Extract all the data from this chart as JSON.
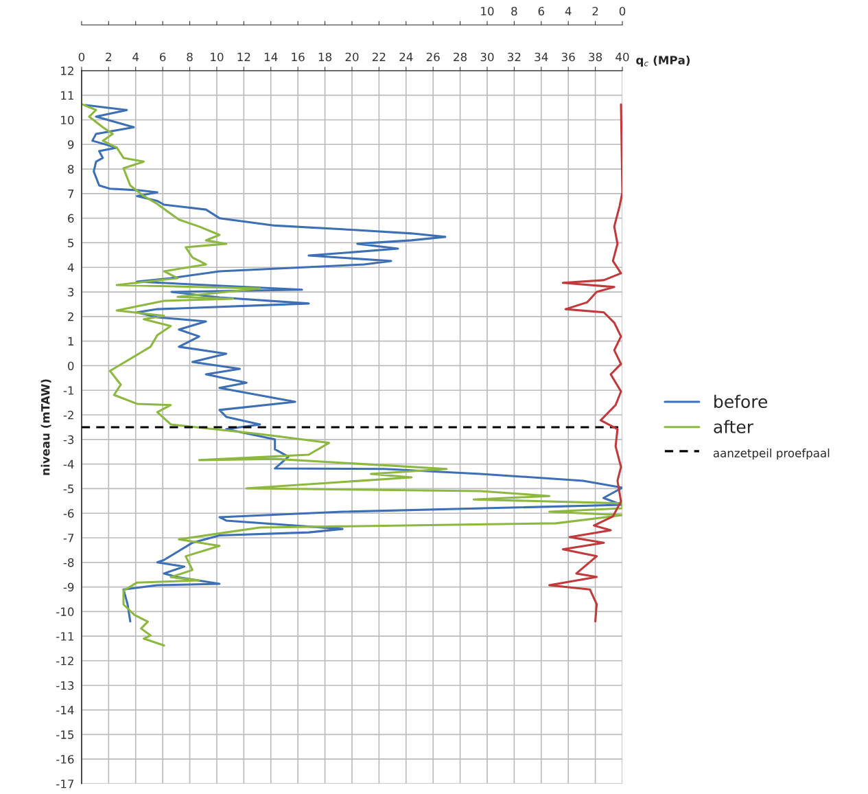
{
  "chart_data": {
    "type": "line",
    "xlabel": "q$_{c}$ (MPa)",
    "ylabel": "niveau (mTAW)",
    "xlim": [
      0,
      40
    ],
    "xticks": [
      0,
      2,
      4,
      6,
      8,
      10,
      12,
      14,
      16,
      18,
      20,
      22,
      24,
      26,
      28,
      30,
      32,
      34,
      36,
      38,
      40
    ],
    "x2lim": [
      40,
      0
    ],
    "x2ticks": [
      0,
      2,
      4,
      6,
      8,
      10,
      {
        "value": 12,
        "label": null
      },
      {
        "value": 14,
        "label": null
      },
      {
        "value": 16,
        "label": null
      },
      {
        "value": 18,
        "label": null
      },
      {
        "value": 20,
        "label": null
      },
      {
        "value": 22,
        "label": null
      },
      {
        "value": 24,
        "label": null
      },
      {
        "value": 26,
        "label": null
      },
      {
        "value": 28,
        "label": null
      },
      {
        "value": 30,
        "label": null
      },
      {
        "value": 32,
        "label": null
      },
      {
        "value": 34,
        "label": null
      },
      {
        "value": 36,
        "label": null
      },
      {
        "value": 38,
        "label": null
      },
      {
        "value": 40,
        "label": null
      }
    ],
    "ylim": [
      -17,
      12
    ],
    "yticks": [
      -17,
      -16,
      -15,
      -14,
      -13,
      -12,
      -11,
      -10,
      -9,
      -8,
      -7,
      -6,
      -5,
      -4,
      -3,
      -2,
      -1,
      0,
      1,
      2,
      3,
      4,
      5,
      6,
      7,
      8,
      9,
      10,
      11,
      12
    ],
    "grid": true,
    "legend": "right",
    "line_style": "solid",
    "marker": "none",
    "ref_lines": [
      {
        "axis": "y",
        "value": -2.5,
        "label": "aanzetpeil proefpaal",
        "color": "#000000",
        "line_style": "dashed"
      }
    ],
    "series": [
      {
        "name": "before",
        "color": "#3d6fb5",
        "x": [
          0.3,
          3.35,
          1.07,
          3.86,
          1.07,
          0.8,
          2.6,
          1.3,
          1.57,
          1.07,
          0.9,
          1.3,
          2.1,
          4.1,
          5.6,
          4.1,
          5.6,
          6.1,
          9.2,
          10.2,
          14.3,
          19.3,
          24.4,
          26.9,
          24.4,
          20.4,
          23.4,
          16.8,
          22.9,
          20.9,
          10.2,
          6.6,
          4.1,
          16.3,
          6.65,
          10.2,
          16.8,
          5.6,
          4.1,
          5.6,
          9.2,
          7.2,
          8.7,
          7.2,
          10.7,
          8.2,
          11.7,
          9.2,
          12.2,
          10.2,
          15.8,
          10.2,
          10.7,
          13.2,
          10.7,
          14.3,
          14.3,
          15.3,
          14.3,
          22.4,
          29.5,
          37.1,
          40,
          38.6,
          40,
          19.3,
          10.2,
          10.7,
          19.3,
          16.8,
          10.2,
          8.2,
          6.1,
          5.6,
          7.6,
          6.1,
          7.1,
          10.2,
          5.6,
          3.1,
          3.4,
          3.6
        ],
        "values": [
          10.6,
          10.4,
          10.13,
          9.7,
          9.43,
          9.15,
          8.87,
          8.73,
          8.45,
          8.3,
          7.9,
          7.33,
          7.2,
          7.14,
          7.05,
          6.9,
          6.7,
          6.55,
          6.35,
          6.0,
          5.7,
          5.55,
          5.38,
          5.24,
          5.1,
          4.96,
          4.76,
          4.48,
          4.26,
          4.12,
          3.84,
          3.56,
          3.42,
          3.09,
          3.0,
          2.78,
          2.53,
          2.3,
          2.17,
          1.97,
          1.8,
          1.47,
          1.19,
          0.77,
          0.49,
          0.15,
          -0.13,
          -0.35,
          -0.69,
          -0.9,
          -1.47,
          -1.8,
          -2.08,
          -2.39,
          -2.58,
          -3.0,
          -3.4,
          -3.7,
          -4.18,
          -4.2,
          -4.4,
          -4.68,
          -4.96,
          -5.38,
          -5.66,
          -5.94,
          -6.16,
          -6.3,
          -6.64,
          -6.78,
          -6.9,
          -7.2,
          -7.9,
          -8.0,
          -8.17,
          -8.45,
          -8.6,
          -8.87,
          -8.93,
          -9.1,
          -9.7,
          -10.4
        ]
      },
      {
        "name": "after",
        "color": "#8db840",
        "x": [
          0.05,
          1.07,
          0.56,
          1.57,
          2.3,
          1.57,
          2.6,
          3.1,
          4.6,
          3.1,
          3.6,
          4.6,
          5.6,
          7.2,
          8.7,
          10.2,
          9.2,
          10.7,
          7.7,
          8.2,
          9.2,
          6.1,
          7.1,
          2.6,
          13.2,
          10.7,
          7.1,
          11.2,
          6.1,
          2.6,
          6.1,
          4.6,
          6.6,
          5.6,
          5.1,
          2.1,
          2.9,
          2.4,
          4.1,
          6.6,
          5.6,
          6.6,
          13.2,
          18.3,
          16.8,
          8.7,
          14.3,
          27.0,
          21.4,
          24.4,
          12.2,
          29.5,
          34.6,
          29.0,
          40,
          40,
          34.6,
          40,
          35.1,
          13.2,
          10.7,
          7.2,
          10.2,
          7.7,
          8.2,
          6.6,
          8.7,
          4.1,
          3.1,
          3.1,
          3.9,
          4.9,
          4.4,
          5.1,
          4.6,
          6.1
        ],
        "values": [
          10.63,
          10.4,
          10.13,
          9.7,
          9.43,
          9.15,
          8.87,
          8.45,
          8.3,
          8.03,
          7.33,
          6.9,
          6.58,
          5.94,
          5.66,
          5.32,
          5.1,
          4.96,
          4.82,
          4.4,
          4.12,
          3.84,
          3.56,
          3.28,
          3.14,
          3.0,
          2.8,
          2.72,
          2.64,
          2.25,
          2.03,
          1.89,
          1.61,
          1.24,
          0.77,
          -0.21,
          -0.77,
          -1.19,
          -1.55,
          -1.6,
          -1.89,
          -2.39,
          -2.78,
          -3.14,
          -3.62,
          -3.84,
          -3.79,
          -4.2,
          -4.4,
          -4.54,
          -4.99,
          -5.1,
          -5.3,
          -5.44,
          -5.6,
          -5.8,
          -5.94,
          -6.08,
          -6.41,
          -6.58,
          -6.78,
          -7.06,
          -7.33,
          -7.75,
          -8.31,
          -8.6,
          -8.73,
          -8.82,
          -9.15,
          -9.71,
          -10.13,
          -10.41,
          -10.69,
          -10.97,
          -11.1,
          -11.38
        ]
      },
      {
        "color": "#c0393b",
        "axis": "x2",
        "x": [
          0.1,
          0,
          0.2,
          0.6,
          0.36,
          0.7,
          0.1,
          1.37,
          4.4,
          0.6,
          1.9,
          2.6,
          4.2,
          1.37,
          0.6,
          0.1,
          0.6,
          0.1,
          0.86,
          0.1,
          0.5,
          1.6,
          0.36,
          0.5,
          0.1,
          0.36,
          0.1,
          0.7,
          2.1,
          0.86,
          3.9,
          1.37,
          4.4,
          1.9,
          3.4,
          1.9,
          5.4,
          2.4,
          1.9,
          2.0
        ],
        "values": [
          10.63,
          7.05,
          6.5,
          5.66,
          4.96,
          4.26,
          3.76,
          3.48,
          3.37,
          3.2,
          3.0,
          2.58,
          2.3,
          2.17,
          1.75,
          1.19,
          0.63,
          0.07,
          -0.35,
          -1.05,
          -1.6,
          -2.22,
          -2.58,
          -3.28,
          -4.12,
          -4.68,
          -5.52,
          -6.13,
          -6.5,
          -6.69,
          -6.97,
          -7.2,
          -7.47,
          -7.75,
          -8.45,
          -8.59,
          -8.93,
          -9.1,
          -9.7,
          -10.4
        ]
      }
    ]
  }
}
